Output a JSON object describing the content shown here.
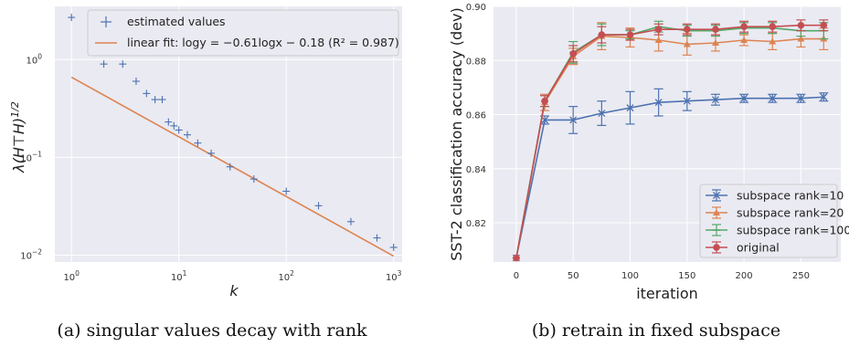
{
  "chart_data": [
    {
      "type": "scatter",
      "caption": "(a) singular values decay with rank",
      "xlabel": "k",
      "ylabel": "λ(H⊤H)1/2",
      "xscale": "log",
      "yscale": "log",
      "xlim": [
        0.7,
        1200
      ],
      "ylim": [
        0.0085,
        3.5
      ],
      "x_ticks": [
        {
          "v": 1,
          "base": "10",
          "exp": "0"
        },
        {
          "v": 10,
          "base": "10",
          "exp": "1"
        },
        {
          "v": 100,
          "base": "10",
          "exp": "2"
        },
        {
          "v": 1000,
          "base": "10",
          "exp": "3"
        }
      ],
      "y_ticks": [
        {
          "v": 0.01,
          "base": "10",
          "exp": "−2"
        },
        {
          "v": 0.1,
          "base": "10",
          "exp": "−1"
        },
        {
          "v": 1,
          "base": "10",
          "exp": "0"
        }
      ],
      "grid": true,
      "legend_position": "top-right",
      "series": [
        {
          "name": "estimated values",
          "kind": "scatter",
          "marker": "+",
          "color": "#4c72b0",
          "points": [
            [
              1,
              2.7
            ],
            [
              2,
              0.9
            ],
            [
              3,
              0.9
            ],
            [
              4,
              0.6
            ],
            [
              5,
              0.45
            ],
            [
              6,
              0.39
            ],
            [
              7,
              0.39
            ],
            [
              8,
              0.23
            ],
            [
              9,
              0.21
            ],
            [
              10,
              0.19
            ],
            [
              12,
              0.17
            ],
            [
              15,
              0.14
            ],
            [
              20,
              0.11
            ],
            [
              30,
              0.08
            ],
            [
              50,
              0.06
            ],
            [
              100,
              0.045
            ],
            [
              200,
              0.032
            ],
            [
              400,
              0.022
            ],
            [
              700,
              0.015
            ],
            [
              1000,
              0.012
            ]
          ]
        },
        {
          "name": "linear fit: logy = −0.61logx − 0.18 (R² = 0.987)",
          "kind": "line",
          "color": "#dd8452",
          "slope": -0.61,
          "intercept": -0.18,
          "x_range": [
            1,
            1000
          ]
        }
      ]
    },
    {
      "type": "line",
      "caption": "(b) retrain in fixed subspace",
      "xlabel": "iteration",
      "ylabel": "SST-2 classification accuracy (dev)",
      "xlim": [
        -20,
        285
      ],
      "ylim": [
        0.8055,
        0.9
      ],
      "x_ticks": [
        0,
        50,
        100,
        150,
        200,
        250
      ],
      "y_ticks": [
        "0.82",
        "0.84",
        "0.86",
        "0.88",
        "0.90"
      ],
      "grid": true,
      "legend_position": "bottom-right",
      "x": [
        0,
        25,
        50,
        75,
        100,
        125,
        150,
        175,
        200,
        225,
        250,
        270
      ],
      "series": [
        {
          "name": "subspace rank=10",
          "color": "#4c72b0",
          "marker": "x",
          "values": [
            0.807,
            0.858,
            0.858,
            0.8605,
            0.8625,
            0.8645,
            0.865,
            0.8655,
            0.866,
            0.866,
            0.866,
            0.8665
          ],
          "errors": [
            0,
            0.0015,
            0.005,
            0.0045,
            0.006,
            0.005,
            0.0035,
            0.002,
            0.0015,
            0.0015,
            0.0015,
            0.0015
          ]
        },
        {
          "name": "subspace rank=20",
          "color": "#dd8452",
          "marker": "^",
          "values": [
            0.807,
            0.8645,
            0.8815,
            0.889,
            0.8885,
            0.8875,
            0.886,
            0.8865,
            0.8875,
            0.887,
            0.888,
            0.888
          ],
          "errors": [
            0,
            0.003,
            0.003,
            0.005,
            0.0035,
            0.004,
            0.004,
            0.003,
            0.002,
            0.003,
            0.003,
            0.004
          ]
        },
        {
          "name": "subspace rank=100",
          "color": "#55a868",
          "marker": "_",
          "values": [
            0.807,
            0.865,
            0.883,
            0.8895,
            0.8895,
            0.8925,
            0.891,
            0.891,
            0.892,
            0.892,
            0.891,
            0.891
          ],
          "errors": [
            0,
            0.002,
            0.004,
            0.004,
            0.0015,
            0.002,
            0.002,
            0.002,
            0.002,
            0.002,
            0.002,
            0.003
          ]
        },
        {
          "name": "original",
          "color": "#c44e52",
          "marker": "o",
          "values": [
            0.807,
            0.865,
            0.8825,
            0.8895,
            0.8895,
            0.8915,
            0.8915,
            0.8915,
            0.8925,
            0.8925,
            0.893,
            0.893
          ],
          "errors": [
            0,
            0.002,
            0.003,
            0.003,
            0.002,
            0.002,
            0.002,
            0.002,
            0.002,
            0.002,
            0.002,
            0.002
          ]
        }
      ]
    }
  ]
}
